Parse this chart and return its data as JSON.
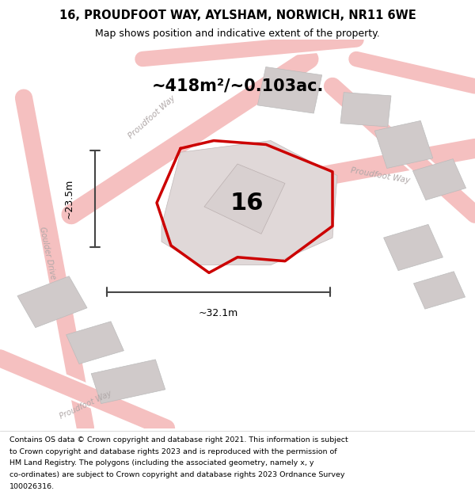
{
  "title_line1": "16, PROUDFOOT WAY, AYLSHAM, NORWICH, NR11 6WE",
  "title_line2": "Map shows position and indicative extent of the property.",
  "area_label": "~418m²/~0.103ac.",
  "property_number": "16",
  "dim_horizontal": "~32.1m",
  "dim_vertical": "~23.5m",
  "footer_lines": [
    "Contains OS data © Crown copyright and database right 2021. This information is subject",
    "to Crown copyright and database rights 2023 and is reproduced with the permission of",
    "HM Land Registry. The polygons (including the associated geometry, namely x, y",
    "co-ordinates) are subject to Crown copyright and database rights 2023 Ordnance Survey",
    "100026316."
  ],
  "bg_color": "#f2f0f0",
  "road_color_light": "#f5c0c0",
  "plot_outline_color": "#cc0000",
  "dim_line_color": "#444444",
  "building_color": "#d8d0d0",
  "road_label_color": "#b0a8a8"
}
